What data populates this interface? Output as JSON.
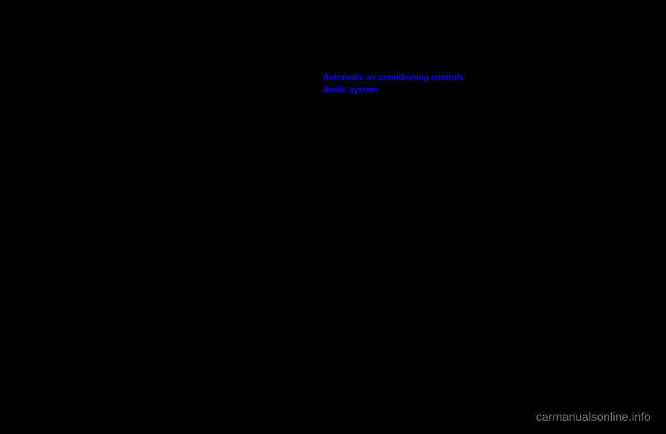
{
  "links": {
    "auto_ac": "Automatic air conditioning controls",
    "audio": "Audio system"
  },
  "watermark": "carmanualsonline.info",
  "colors": {
    "background": "#000000",
    "link_color": "#0000ff",
    "watermark_color": "#707070"
  }
}
